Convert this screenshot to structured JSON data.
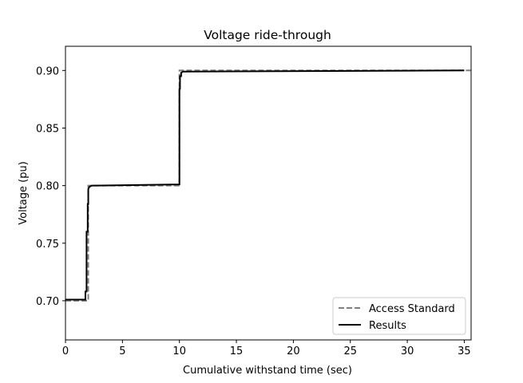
{
  "chart_data": {
    "type": "line",
    "title": "Voltage ride-through",
    "xlabel": "Cumulative withstand time (sec)",
    "ylabel": "Voltage (pu)",
    "xlim": [
      0,
      35.6
    ],
    "ylim": [
      0.666,
      0.921
    ],
    "xticks": [
      0,
      5,
      10,
      15,
      20,
      25,
      30,
      35
    ],
    "yticks": [
      0.7,
      0.75,
      0.8,
      0.85,
      0.9
    ],
    "xtick_labels": [
      "0",
      "5",
      "10",
      "15",
      "20",
      "25",
      "30",
      "35"
    ],
    "ytick_labels": [
      "0.70",
      "0.75",
      "0.80",
      "0.85",
      "0.90"
    ],
    "grid": false,
    "legend_position": "lower-right",
    "series": [
      {
        "name": "Access Standard",
        "style": "dashed",
        "color": "#7f7f7f",
        "x": [
          0,
          2.0,
          2.0,
          10.0,
          10.0,
          35.6
        ],
        "y": [
          0.7,
          0.7,
          0.8,
          0.8,
          0.9,
          0.9
        ]
      },
      {
        "name": "Results",
        "style": "solid",
        "color": "#000000",
        "x": [
          0,
          1.75,
          1.75,
          1.85,
          1.85,
          1.95,
          1.95,
          2.0,
          2.0,
          2.1,
          2.3,
          10.0,
          10.0,
          10.05,
          10.05,
          10.15,
          10.15,
          10.3,
          35.0
        ],
        "y": [
          0.701,
          0.701,
          0.708,
          0.708,
          0.76,
          0.76,
          0.784,
          0.784,
          0.797,
          0.799,
          0.8,
          0.801,
          0.884,
          0.884,
          0.895,
          0.895,
          0.898,
          0.899,
          0.9
        ]
      }
    ]
  }
}
